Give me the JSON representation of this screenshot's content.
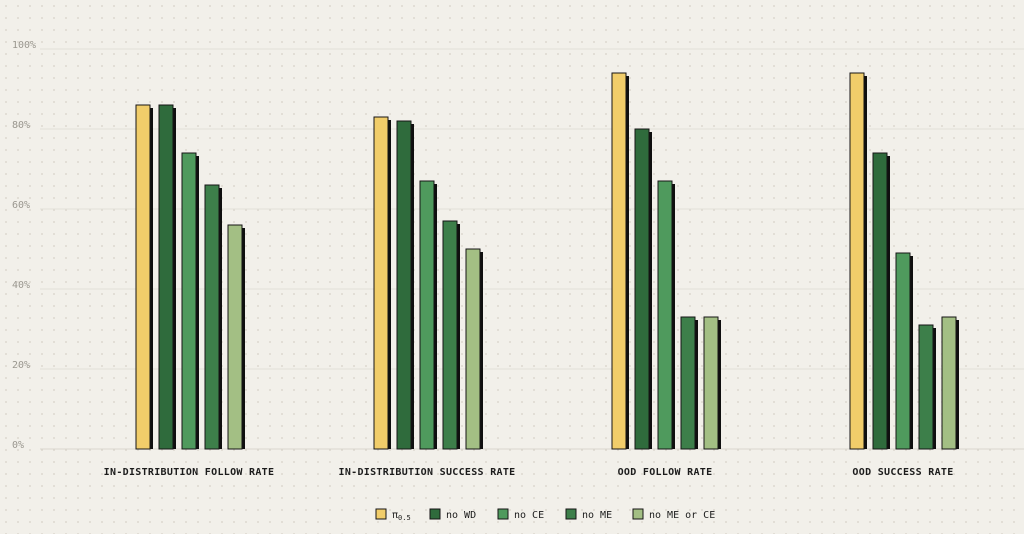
{
  "chart_data": {
    "type": "bar",
    "categories": [
      "IN-DISTRIBUTION FOLLOW RATE",
      "IN-DISTRIBUTION SUCCESS RATE",
      "OOD FOLLOW RATE",
      "OOD SUCCESS RATE"
    ],
    "series": [
      {
        "name": "π0.5",
        "color": "#f1cd6a",
        "values": [
          86,
          83,
          94,
          94
        ]
      },
      {
        "name": "no WD",
        "color": "#2f6b3c",
        "values": [
          86,
          82,
          80,
          74
        ]
      },
      {
        "name": "no CE",
        "color": "#4f9a5d",
        "values": [
          74,
          67,
          67,
          49
        ]
      },
      {
        "name": "no ME",
        "color": "#3d7f4a",
        "values": [
          66,
          57,
          33,
          31
        ]
      },
      {
        "name": "no ME or CE",
        "color": "#a3bf84",
        "values": [
          56,
          50,
          33,
          33
        ]
      }
    ],
    "ylim": [
      0,
      100
    ],
    "yticks": [
      "0%",
      "20%",
      "40%",
      "60%",
      "80%",
      "100%"
    ],
    "grid": true,
    "legend_position": "bottom-center"
  }
}
